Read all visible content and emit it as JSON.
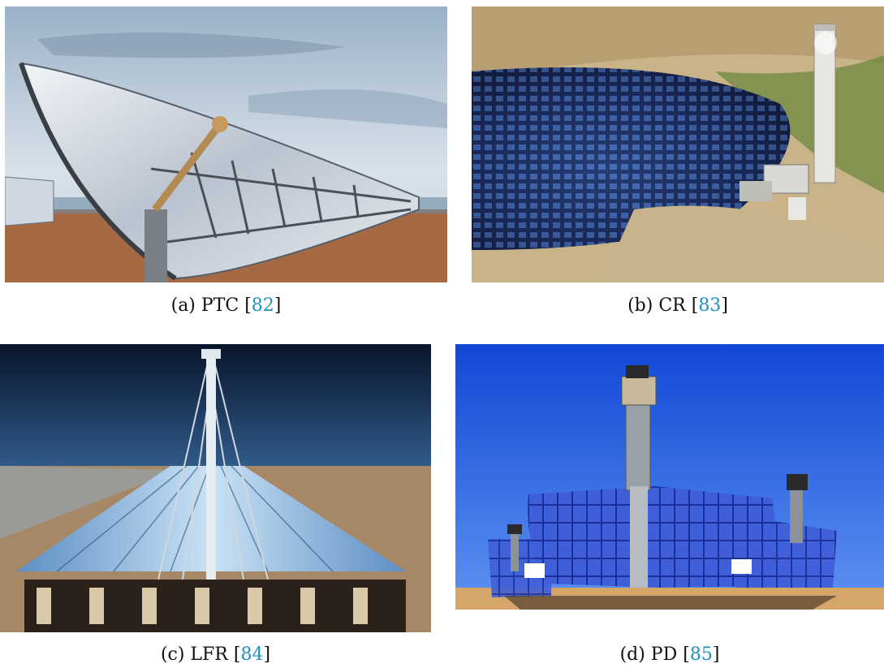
{
  "figures": [
    {
      "label": "(a) PTC [",
      "ref": "82",
      "close": "]"
    },
    {
      "label": "(b) CR [",
      "ref": "83",
      "close": "]"
    },
    {
      "label": "(c) LFR [",
      "ref": "84",
      "close": "]"
    },
    {
      "label": "(d) PD [",
      "ref": "85",
      "close": "]"
    }
  ],
  "colors": {
    "citation": "#1f8fbf",
    "sky_blue": "#1f5fe0",
    "mirror": "#c8d4e4"
  },
  "icons": [
    "parabolic-trough-photo",
    "central-receiver-photo",
    "linear-fresnel-photo",
    "parabolic-dish-photo"
  ]
}
